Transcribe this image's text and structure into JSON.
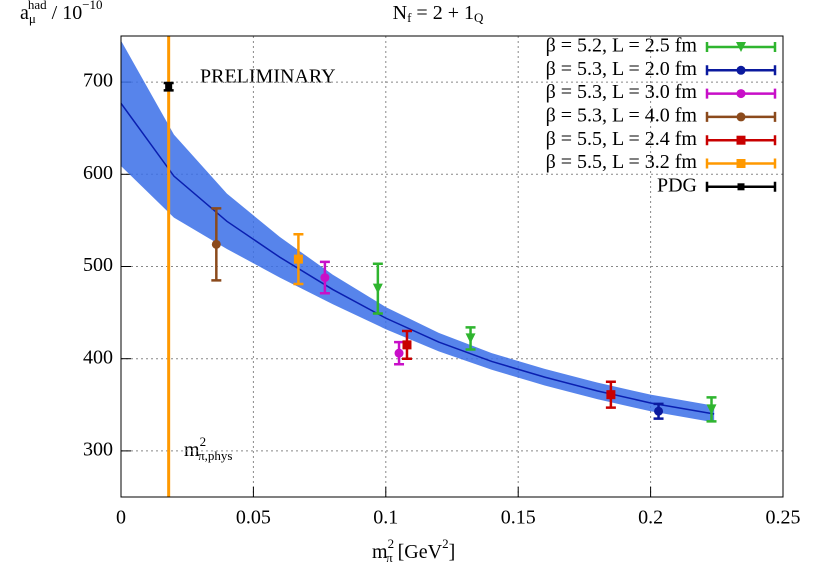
{
  "chart_data": {
    "type": "scatter",
    "title": {
      "main": "N",
      "sub": "f",
      "suffix": " = 2 + 1",
      "suffix_sub": "Q"
    },
    "y_label": {
      "main": "a",
      "sub": "μ",
      "sup": "had",
      "suffix": " / 10",
      "suffix_sup": "−10"
    },
    "x_label": {
      "main": "m",
      "sup": "2",
      "sub": "π",
      "suffix": " [GeV",
      "suffix_sup": "2",
      "end": "]"
    },
    "annotation": "PRELIMINARY",
    "phys_label": {
      "main": "m",
      "sup": "2",
      "sub": "π,phys"
    },
    "xlim": [
      0,
      0.25
    ],
    "ylim": [
      250,
      750
    ],
    "xticks": [
      0,
      0.05,
      0.1,
      0.15,
      0.2,
      0.25
    ],
    "yticks": [
      300,
      400,
      500,
      600,
      700
    ],
    "grid": true,
    "legend": "top-right",
    "physical_line": {
      "x": 0.018,
      "color": "#ff9900"
    },
    "fit": {
      "color": "#3a6fe8",
      "line_color": "#0a1fb0",
      "x": [
        0,
        0.02,
        0.04,
        0.06,
        0.08,
        0.1,
        0.12,
        0.14,
        0.16,
        0.18,
        0.2,
        0.224
      ],
      "values": [
        677,
        598,
        549,
        510,
        475,
        444,
        418,
        397,
        380,
        365,
        352,
        340
      ],
      "upper": [
        745,
        643,
        579,
        532,
        491,
        456,
        428,
        406,
        389,
        374,
        361,
        349
      ],
      "lower": [
        609,
        553,
        519,
        488,
        459,
        432,
        408,
        388,
        371,
        356,
        343,
        331
      ]
    },
    "series": [
      {
        "name": "β = 5.2, L = 2.5 fm",
        "color": "#2fb52f",
        "marker": "triangle",
        "x": [
          0.097,
          0.132,
          0.223
        ],
        "values": [
          476,
          422,
          345
        ],
        "errors": [
          27,
          12,
          13
        ]
      },
      {
        "name": "β = 5.3, L = 2.0 fm",
        "color": "#0b1a9e",
        "marker": "circle",
        "x": [
          0.203
        ],
        "values": [
          343
        ],
        "errors": [
          8
        ]
      },
      {
        "name": "β = 5.3, L = 3.0 fm",
        "color": "#c80fc8",
        "marker": "circle",
        "x": [
          0.077,
          0.105
        ],
        "values": [
          488,
          406
        ],
        "errors": [
          17,
          12
        ]
      },
      {
        "name": "β = 5.3, L = 4.0 fm",
        "color": "#8b4a1c",
        "marker": "circle",
        "x": [
          0.036
        ],
        "values": [
          524
        ],
        "errors": [
          39
        ]
      },
      {
        "name": "β = 5.5, L = 2.4 fm",
        "color": "#c80000",
        "marker": "square",
        "x": [
          0.108,
          0.185
        ],
        "values": [
          415,
          361
        ],
        "errors": [
          15,
          14
        ]
      },
      {
        "name": "β = 5.5, L = 3.2 fm",
        "color": "#ff9900",
        "marker": "square",
        "x": [
          0.067
        ],
        "values": [
          508
        ],
        "errors": [
          27
        ]
      },
      {
        "name": "PDG",
        "color": "#000000",
        "marker": "cross",
        "x": [
          0.018
        ],
        "values": [
          695
        ],
        "errors": [
          4
        ]
      }
    ]
  }
}
